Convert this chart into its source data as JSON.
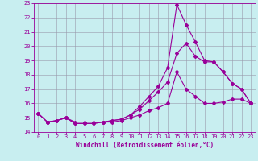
{
  "xlabel": "Windchill (Refroidissement éolien,°C)",
  "xlim": [
    -0.5,
    23.5
  ],
  "ylim": [
    14,
    23
  ],
  "yticks": [
    14,
    15,
    16,
    17,
    18,
    19,
    20,
    21,
    22,
    23
  ],
  "xticks": [
    0,
    1,
    2,
    3,
    4,
    5,
    6,
    7,
    8,
    9,
    10,
    11,
    12,
    13,
    14,
    15,
    16,
    17,
    18,
    19,
    20,
    21,
    22,
    23
  ],
  "bg_color": "#c8eef0",
  "line_color": "#990099",
  "grid_color": "#9999aa",
  "line1_x": [
    0,
    1,
    2,
    3,
    4,
    5,
    6,
    7,
    8,
    9,
    10,
    11,
    12,
    13,
    14,
    15,
    16,
    17,
    18,
    19,
    20,
    21,
    22,
    23
  ],
  "line1_y": [
    15.3,
    14.7,
    14.8,
    15.0,
    14.7,
    14.7,
    14.7,
    14.7,
    14.7,
    14.8,
    15.0,
    15.2,
    15.5,
    15.7,
    16.0,
    18.2,
    17.0,
    16.5,
    16.0,
    16.0,
    16.1,
    16.3,
    16.3,
    16.0
  ],
  "line2_x": [
    0,
    1,
    2,
    3,
    4,
    5,
    6,
    7,
    8,
    9,
    10,
    11,
    12,
    13,
    14,
    15,
    16,
    17,
    18,
    19,
    20,
    21,
    22,
    23
  ],
  "line2_y": [
    15.3,
    14.7,
    14.8,
    15.0,
    14.6,
    14.6,
    14.6,
    14.7,
    14.8,
    14.9,
    15.2,
    15.6,
    16.2,
    16.8,
    17.5,
    19.5,
    20.2,
    19.3,
    18.9,
    18.9,
    18.2,
    17.4,
    17.0,
    16.0
  ],
  "line3_x": [
    0,
    1,
    2,
    3,
    4,
    5,
    6,
    7,
    8,
    9,
    10,
    11,
    12,
    13,
    14,
    15,
    16,
    17,
    18,
    19,
    20,
    21,
    22,
    23
  ],
  "line3_y": [
    15.3,
    14.7,
    14.8,
    15.0,
    14.6,
    14.6,
    14.6,
    14.7,
    14.8,
    14.9,
    15.2,
    15.8,
    16.5,
    17.2,
    18.5,
    22.9,
    21.5,
    20.3,
    19.0,
    18.9,
    18.2,
    17.4,
    17.0,
    16.0
  ]
}
